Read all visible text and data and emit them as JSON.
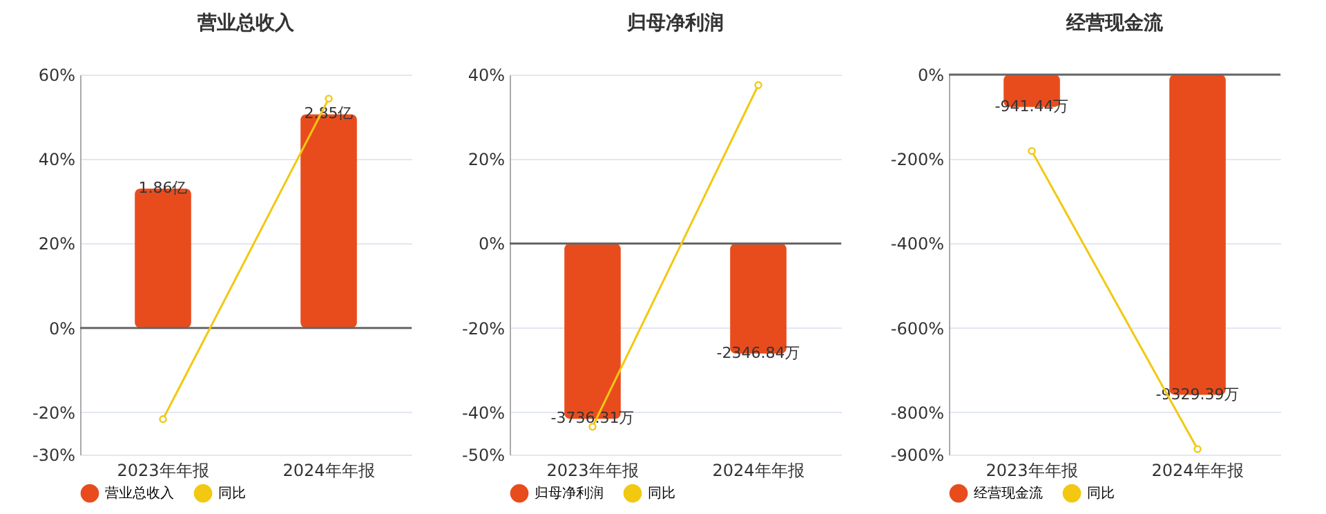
{
  "chart_data": [
    {
      "type": "bar",
      "title": "营业总收入",
      "categories": [
        "2023年年报",
        "2024年年报"
      ],
      "series": [
        {
          "name": "营业总收入",
          "type": "bar",
          "color": "#e84c1d",
          "axis": "y2",
          "values": [
            1.86,
            2.85
          ],
          "value_labels": [
            "1.86亿",
            "2.85亿"
          ]
        },
        {
          "name": "同比",
          "type": "line",
          "color": "#f2c811",
          "values": [
            -21.6,
            54.3
          ]
        }
      ],
      "ylim": [
        -30,
        60
      ],
      "yticks": [
        {
          "value": -30,
          "label": "-30%"
        },
        {
          "value": -20,
          "label": "-20%"
        },
        {
          "value": 0,
          "label": "0%"
        },
        {
          "value": 20,
          "label": "20%"
        },
        {
          "value": 40,
          "label": "40%"
        },
        {
          "value": 60,
          "label": "60%"
        }
      ],
      "y2lim": [
        -1.69,
        3.38
      ],
      "grid": "y",
      "legend": "bottom",
      "marker": "circle"
    },
    {
      "type": "bar",
      "title": "归母净利润",
      "categories": [
        "2023年年报",
        "2024年年报"
      ],
      "series": [
        {
          "name": "归母净利润",
          "type": "bar",
          "color": "#e84c1d",
          "axis": "y2",
          "values": [
            -3736.31,
            -2346.84
          ],
          "value_labels": [
            "-3736.31万",
            "-2346.84万"
          ]
        },
        {
          "name": "同比",
          "type": "line",
          "color": "#f2c811",
          "values": [
            -43.4,
            37.5
          ]
        }
      ],
      "ylim": [
        -50,
        40
      ],
      "yticks": [
        {
          "value": -50,
          "label": "-50%"
        },
        {
          "value": -40,
          "label": "-40%"
        },
        {
          "value": -20,
          "label": "-20%"
        },
        {
          "value": 0,
          "label": "0%"
        },
        {
          "value": 20,
          "label": "20%"
        },
        {
          "value": 40,
          "label": "40%"
        }
      ],
      "y2lim": [
        -4500,
        3600
      ],
      "grid": "y",
      "legend": "bottom",
      "marker": "circle"
    },
    {
      "type": "bar",
      "title": "经营现金流",
      "categories": [
        "2023年年报",
        "2024年年报"
      ],
      "series": [
        {
          "name": "经营现金流",
          "type": "bar",
          "color": "#e84c1d",
          "axis": "y2",
          "values": [
            -941.44,
            -9329.39
          ],
          "value_labels": [
            "-941.44万",
            "-9329.39万"
          ]
        },
        {
          "name": "同比",
          "type": "line",
          "color": "#f2c811",
          "values": [
            -181,
            -887
          ]
        }
      ],
      "ylim": [
        -900,
        0
      ],
      "yticks": [
        {
          "value": -900,
          "label": "-900%"
        },
        {
          "value": -800,
          "label": "-800%"
        },
        {
          "value": -600,
          "label": "-600%"
        },
        {
          "value": -400,
          "label": "-400%"
        },
        {
          "value": -200,
          "label": "-200%"
        },
        {
          "value": 0,
          "label": "0%"
        }
      ],
      "y2lim": [
        -11070,
        0
      ],
      "grid": "y",
      "legend": "bottom",
      "marker": "circle"
    }
  ]
}
